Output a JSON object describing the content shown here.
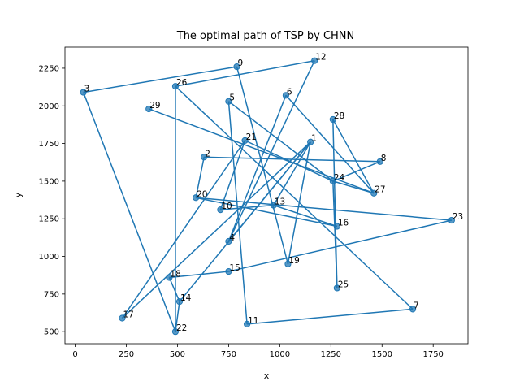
{
  "chart_data": {
    "type": "scatter",
    "title": "The optimal path of TSP by CHNN",
    "xlabel": "x",
    "ylabel": "y",
    "xlim": [
      -50,
      1920
    ],
    "ylim": [
      420,
      2390
    ],
    "xticks": [
      0,
      250,
      500,
      750,
      1000,
      1250,
      1500,
      1750
    ],
    "yticks": [
      500,
      750,
      1000,
      1250,
      1500,
      1750,
      2000,
      2250
    ],
    "grid": false,
    "color": "#1f77b4",
    "points": [
      {
        "label": "1",
        "x": 1150,
        "y": 1760
      },
      {
        "label": "2",
        "x": 630,
        "y": 1660
      },
      {
        "label": "3",
        "x": 40,
        "y": 2090
      },
      {
        "label": "4",
        "x": 750,
        "y": 1100
      },
      {
        "label": "5",
        "x": 750,
        "y": 2030
      },
      {
        "label": "6",
        "x": 1030,
        "y": 2070
      },
      {
        "label": "7",
        "x": 1650,
        "y": 650
      },
      {
        "label": "8",
        "x": 1490,
        "y": 1630
      },
      {
        "label": "9",
        "x": 790,
        "y": 2260
      },
      {
        "label": "10",
        "x": 710,
        "y": 1310
      },
      {
        "label": "11",
        "x": 840,
        "y": 550
      },
      {
        "label": "12",
        "x": 1170,
        "y": 2300
      },
      {
        "label": "13",
        "x": 970,
        "y": 1340
      },
      {
        "label": "14",
        "x": 510,
        "y": 700
      },
      {
        "label": "15",
        "x": 750,
        "y": 900
      },
      {
        "label": "16",
        "x": 1280,
        "y": 1200
      },
      {
        "label": "17",
        "x": 230,
        "y": 590
      },
      {
        "label": "18",
        "x": 460,
        "y": 860
      },
      {
        "label": "19",
        "x": 1040,
        "y": 950
      },
      {
        "label": "20",
        "x": 590,
        "y": 1390
      },
      {
        "label": "21",
        "x": 830,
        "y": 1770
      },
      {
        "label": "22",
        "x": 490,
        "y": 500
      },
      {
        "label": "23",
        "x": 1840,
        "y": 1240
      },
      {
        "label": "24",
        "x": 1260,
        "y": 1500
      },
      {
        "label": "25",
        "x": 1280,
        "y": 790
      },
      {
        "label": "26",
        "x": 490,
        "y": 2130
      },
      {
        "label": "27",
        "x": 1460,
        "y": 1420
      },
      {
        "label": "28",
        "x": 1260,
        "y": 1910
      },
      {
        "label": "29",
        "x": 360,
        "y": 1980
      }
    ],
    "path_order": [
      "3",
      "22",
      "14",
      "1",
      "15",
      "18",
      "23",
      "16",
      "13",
      "5",
      "11",
      "7",
      "26",
      "17",
      "24",
      "6",
      "4",
      "1",
      "19",
      "9",
      "3"
    ],
    "path_segments": [
      [
        "3",
        "22"
      ],
      [
        "22",
        "14"
      ],
      [
        "14",
        "1"
      ],
      [
        "1",
        "4"
      ],
      [
        "4",
        "6"
      ],
      [
        "6",
        "27"
      ],
      [
        "27",
        "29"
      ],
      [
        "26",
        "12"
      ],
      [
        "12",
        "4"
      ],
      [
        "22",
        "26"
      ],
      [
        "26",
        "7"
      ],
      [
        "7",
        "11"
      ],
      [
        "11",
        "5"
      ],
      [
        "5",
        "24"
      ],
      [
        "24",
        "27"
      ],
      [
        "27",
        "28"
      ],
      [
        "28",
        "25"
      ],
      [
        "25",
        "24"
      ],
      [
        "24",
        "21"
      ],
      [
        "21",
        "17"
      ],
      [
        "17",
        "1"
      ],
      [
        "1",
        "19"
      ],
      [
        "19",
        "9"
      ],
      [
        "9",
        "3"
      ],
      [
        "2",
        "8"
      ],
      [
        "8",
        "24"
      ],
      [
        "2",
        "20"
      ],
      [
        "20",
        "16"
      ],
      [
        "16",
        "13"
      ],
      [
        "13",
        "10"
      ],
      [
        "10",
        "21"
      ],
      [
        "13",
        "1"
      ],
      [
        "15",
        "23"
      ],
      [
        "23",
        "20"
      ],
      [
        "18",
        "15"
      ],
      [
        "18",
        "14"
      ]
    ]
  }
}
